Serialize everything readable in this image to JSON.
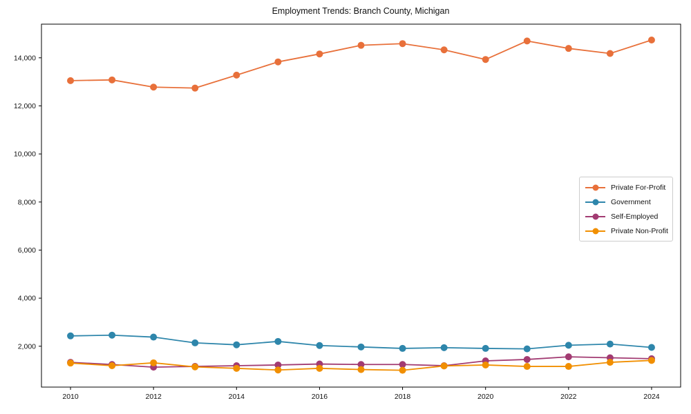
{
  "title": "Employment Trends: Branch County, Michigan",
  "chart_data": {
    "type": "line",
    "title": "Employment Trends: Branch County, Michigan",
    "xlabel": "",
    "ylabel": "",
    "grid": false,
    "legend_position": "center-right",
    "x": [
      2010,
      2011,
      2012,
      2013,
      2014,
      2015,
      2016,
      2017,
      2018,
      2019,
      2020,
      2021,
      2022,
      2023,
      2024
    ],
    "xticks": [
      2010,
      2012,
      2014,
      2016,
      2018,
      2020,
      2022,
      2024
    ],
    "yticks": [
      2000,
      4000,
      6000,
      8000,
      10000,
      12000,
      14000
    ],
    "ytick_labels": [
      "2,000",
      "4,000",
      "6,000",
      "8,000",
      "10,000",
      "12,000",
      "14,000"
    ],
    "xlim": [
      2009.3,
      2024.7
    ],
    "ylim": [
      300,
      15400
    ],
    "series": [
      {
        "name": "Private For-Profit",
        "color": "#E8703A",
        "values": [
          13050,
          13080,
          12780,
          12740,
          13280,
          13830,
          14160,
          14520,
          14590,
          14330,
          13930,
          14700,
          14390,
          14180,
          14740
        ]
      },
      {
        "name": "Government",
        "color": "#2E86AB",
        "values": [
          2430,
          2460,
          2380,
          2140,
          2060,
          2200,
          2030,
          1970,
          1910,
          1940,
          1910,
          1890,
          2040,
          2090,
          1950
        ]
      },
      {
        "name": "Self-Employed",
        "color": "#A23B72",
        "values": [
          1330,
          1240,
          1130,
          1160,
          1190,
          1220,
          1260,
          1240,
          1240,
          1190,
          1390,
          1450,
          1560,
          1520,
          1480
        ]
      },
      {
        "name": "Private Non-Profit",
        "color": "#F18F01",
        "values": [
          1300,
          1190,
          1310,
          1140,
          1080,
          1010,
          1080,
          1030,
          1000,
          1180,
          1220,
          1160,
          1160,
          1330,
          1410
        ]
      }
    ]
  }
}
